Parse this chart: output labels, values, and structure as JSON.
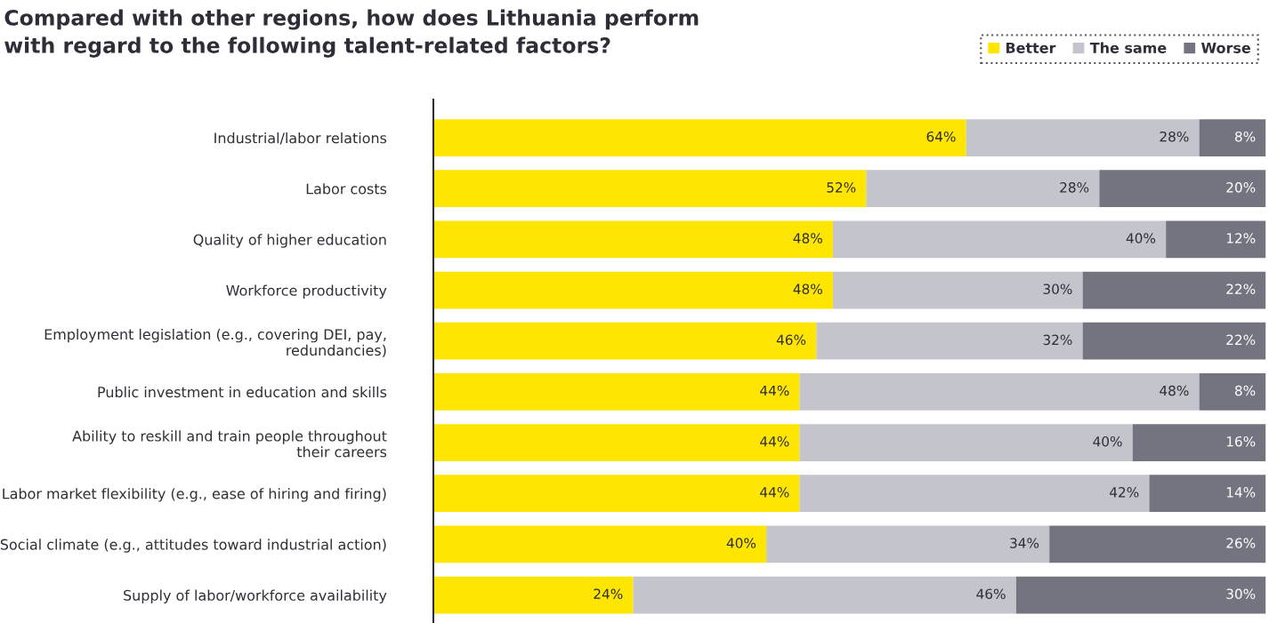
{
  "chart_data": {
    "type": "bar",
    "orientation": "horizontal",
    "stacked": true,
    "title": "Compared with other regions, how does Lithuania perform\nwith regard to the following talent-related factors?",
    "categories": [
      "Industrial/labor relations",
      "Labor costs",
      "Quality of higher education",
      "Workforce productivity",
      "Employment legislation (e.g., covering DEI, pay,\nredundancies)",
      "Public investment in education and skills",
      "Ability to reskill and train people throughout\ntheir careers",
      "Labor market flexibility (e.g., ease of hiring and firing)",
      "Social climate (e.g., attitudes toward industrial action)",
      "Supply of labor/workforce availability"
    ],
    "series": [
      {
        "name": "Better",
        "color": "#ffe600",
        "values": [
          64,
          52,
          48,
          48,
          46,
          44,
          44,
          44,
          40,
          24
        ],
        "value_labels": [
          "64%",
          "52%",
          "48%",
          "48%",
          "46%",
          "44%",
          "44%",
          "44%",
          "40%",
          "24%"
        ]
      },
      {
        "name": "The same",
        "color": "#c4c4cd",
        "values": [
          28,
          28,
          40,
          30,
          32,
          48,
          40,
          42,
          34,
          46
        ],
        "value_labels": [
          "28%",
          "28%",
          "40%",
          "30%",
          "32%",
          "48%",
          "40%",
          "42%",
          "34%",
          "46%"
        ]
      },
      {
        "name": "Worse",
        "color": "#747480",
        "values": [
          8,
          20,
          12,
          22,
          22,
          8,
          16,
          14,
          26,
          30
        ],
        "value_labels": [
          "8%",
          "20%",
          "12%",
          "22%",
          "22%",
          "8%",
          "16%",
          "14%",
          "26%",
          "30%"
        ]
      }
    ],
    "xlim": [
      0,
      100
    ],
    "tick_labels": "y",
    "legend": "top right",
    "grid": false
  }
}
